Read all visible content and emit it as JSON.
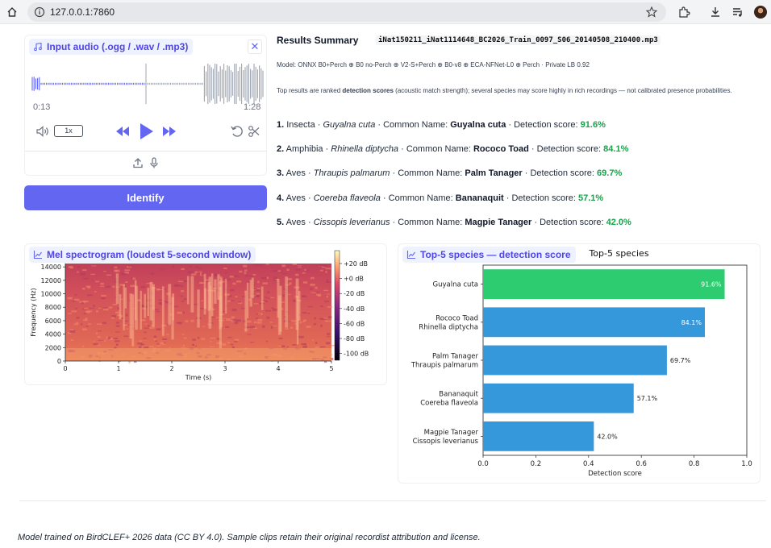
{
  "browser": {
    "url": "127.0.0.1:7860"
  },
  "audio": {
    "label": "Input audio (.ogg / .wav / .mp3)",
    "current_time": "0:13",
    "duration": "1:28",
    "speed": "1x"
  },
  "identify_label": "Identify",
  "results": {
    "title": "Results Summary",
    "filename": "iNat150211_iNat1114648_BC2026_Train_0097_S06_20140508_210400.mp3",
    "model": "Model: ONNX B0+Perch ⊕ B0 no-Perch ⊕ V2-S+Perch ⊕ B0-v8 ⊕ ECA-NFNet-L0 ⊕ Perch · Private LB 0.92",
    "note_pre": "Top results are ranked ",
    "note_bold": "detection scores",
    "note_post": " (acoustic match strength); several species may score highly in rich recordings — not calibrated presence probabilities.",
    "common_prefix": "· Common Name: ",
    "score_prefix": "· Detection score: ",
    "items": [
      {
        "rank": "1.",
        "class": "Insecta",
        "scientific": "Guyalna cuta",
        "common": "Guyalna cuta",
        "score": "91.6%"
      },
      {
        "rank": "2.",
        "class": "Amphibia",
        "scientific": "Rhinella diptycha",
        "common": "Rococo Toad",
        "score": "84.1%"
      },
      {
        "rank": "3.",
        "class": "Aves",
        "scientific": "Thraupis palmarum",
        "common": "Palm Tanager",
        "score": "69.7%"
      },
      {
        "rank": "4.",
        "class": "Aves",
        "scientific": "Coereba flaveola",
        "common": "Bananaquit",
        "score": "57.1%"
      },
      {
        "rank": "5.",
        "class": "Aves",
        "scientific": "Cissopis leverianus",
        "common": "Magpie Tanager",
        "score": "42.0%"
      }
    ]
  },
  "spectrogram": {
    "label": "Mel spectrogram (loudest 5-second window)",
    "ylabel": "Frequency (Hz)",
    "xlabel": "Time (s)",
    "yticks": [
      "0",
      "2000",
      "4000",
      "6000",
      "8000",
      "10000",
      "12000",
      "14000"
    ],
    "xticks": [
      "0",
      "1",
      "2",
      "3",
      "4",
      "5"
    ],
    "cbar_ticks": [
      "+20 dB",
      "+0 dB",
      "-20 dB",
      "-40 dB",
      "-60 dB",
      "-80 dB",
      "-100 dB"
    ]
  },
  "bars": {
    "label": "Top-5 species — detection score",
    "accent_top": "#2ecc71",
    "accent": "#3498db"
  },
  "chart_data": {
    "type": "bar",
    "orientation": "horizontal",
    "title": "Top-5 species",
    "xlabel": "Detection score",
    "ylabel": "",
    "xlim": [
      0,
      1.0
    ],
    "xticks": [
      "0.0",
      "0.2",
      "0.4",
      "0.6",
      "0.8",
      "1.0"
    ],
    "categories": [
      [
        "Guyalna cuta"
      ],
      [
        "Rococo Toad",
        "Rhinella diptycha"
      ],
      [
        "Palm Tanager",
        "Thraupis palmarum"
      ],
      [
        "Bananaquit",
        "Coereba flaveola"
      ],
      [
        "Magpie Tanager",
        "Cissopis leverianus"
      ]
    ],
    "values": [
      0.916,
      0.841,
      0.697,
      0.571,
      0.42
    ],
    "value_labels": [
      "91.6%",
      "84.1%",
      "69.7%",
      "57.1%",
      "42.0%"
    ],
    "colors": [
      "#2ecc71",
      "#3498db",
      "#3498db",
      "#3498db",
      "#3498db"
    ]
  },
  "footer": "Model trained on BirdCLEF+ 2026 data (CC BY 4.0). Sample clips retain their original recordist attribution and license."
}
